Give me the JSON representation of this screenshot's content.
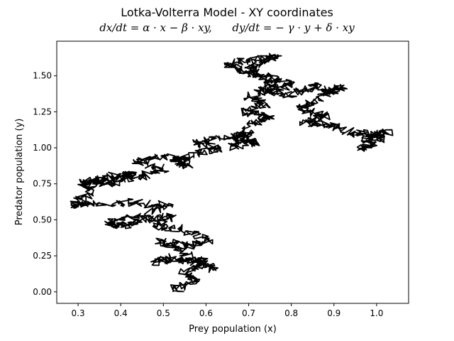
{
  "chart_data": {
    "type": "line",
    "title": "Lotka-Volterra Model - XY coordinates",
    "subtitle": "dx/dt = α · x − β · xy,      dy/dt = − γ · y + δ · xy",
    "xlabel": "Prey population (x)",
    "ylabel": "Predator population (y)",
    "xlim": [
      0.25,
      1.075
    ],
    "ylim": [
      -0.08,
      1.74
    ],
    "xticks": [
      0.3,
      0.4,
      0.5,
      0.6,
      0.7,
      0.8,
      0.9,
      1.0
    ],
    "xtick_labels": [
      "0.3",
      "0.4",
      "0.5",
      "0.6",
      "0.7",
      "0.8",
      "0.9",
      "1.0"
    ],
    "yticks": [
      0.0,
      0.25,
      0.5,
      0.75,
      1.0,
      1.25,
      1.5
    ],
    "ytick_labels": [
      "0.00",
      "0.25",
      "0.50",
      "0.75",
      "1.00",
      "1.25",
      "1.50"
    ],
    "grid": false,
    "series": [
      {
        "color": "#000000",
        "anchors": [
          [
            0.52,
            0.01
          ],
          [
            0.58,
            0.08
          ],
          [
            0.55,
            0.13
          ],
          [
            0.6,
            0.2
          ],
          [
            0.53,
            0.24
          ],
          [
            0.47,
            0.21
          ],
          [
            0.56,
            0.22
          ],
          [
            0.62,
            0.16
          ],
          [
            0.55,
            0.28
          ],
          [
            0.49,
            0.35
          ],
          [
            0.56,
            0.32
          ],
          [
            0.61,
            0.36
          ],
          [
            0.54,
            0.44
          ],
          [
            0.48,
            0.46
          ],
          [
            0.52,
            0.53
          ],
          [
            0.44,
            0.49
          ],
          [
            0.4,
            0.45
          ],
          [
            0.37,
            0.47
          ],
          [
            0.45,
            0.54
          ],
          [
            0.52,
            0.6
          ],
          [
            0.42,
            0.62
          ],
          [
            0.32,
            0.61
          ],
          [
            0.29,
            0.6
          ],
          [
            0.33,
            0.7
          ],
          [
            0.31,
            0.76
          ],
          [
            0.37,
            0.8
          ],
          [
            0.43,
            0.82
          ],
          [
            0.4,
            0.76
          ],
          [
            0.33,
            0.75
          ],
          [
            0.38,
            0.78
          ],
          [
            0.45,
            0.8
          ],
          [
            0.5,
            0.86
          ],
          [
            0.43,
            0.91
          ],
          [
            0.51,
            0.94
          ],
          [
            0.56,
            0.88
          ],
          [
            0.52,
            0.92
          ],
          [
            0.58,
            0.96
          ],
          [
            0.63,
            1.0
          ],
          [
            0.57,
            1.04
          ],
          [
            0.65,
            1.08
          ],
          [
            0.7,
            1.1
          ],
          [
            0.67,
            1.06
          ],
          [
            0.72,
            1.04
          ],
          [
            0.66,
            1.0
          ],
          [
            0.7,
            1.16
          ],
          [
            0.75,
            1.21
          ],
          [
            0.69,
            1.25
          ],
          [
            0.74,
            1.3
          ],
          [
            0.7,
            1.36
          ],
          [
            0.76,
            1.43
          ],
          [
            0.73,
            1.5
          ],
          [
            0.7,
            1.56
          ],
          [
            0.77,
            1.63
          ],
          [
            0.71,
            1.61
          ],
          [
            0.65,
            1.59
          ],
          [
            0.69,
            1.53
          ],
          [
            0.75,
            1.49
          ],
          [
            0.8,
            1.44
          ],
          [
            0.74,
            1.39
          ],
          [
            0.8,
            1.37
          ],
          [
            0.86,
            1.43
          ],
          [
            0.89,
            1.38
          ],
          [
            0.92,
            1.43
          ],
          [
            0.86,
            1.34
          ],
          [
            0.82,
            1.27
          ],
          [
            0.88,
            1.22
          ],
          [
            0.83,
            1.18
          ],
          [
            0.9,
            1.15
          ],
          [
            0.95,
            1.1
          ],
          [
            1.01,
            1.1
          ],
          [
            0.97,
            1.05
          ],
          [
            1.03,
            1.12
          ],
          [
            0.99,
            1.02
          ],
          [
            0.96,
            1.0
          ]
        ]
      }
    ]
  }
}
